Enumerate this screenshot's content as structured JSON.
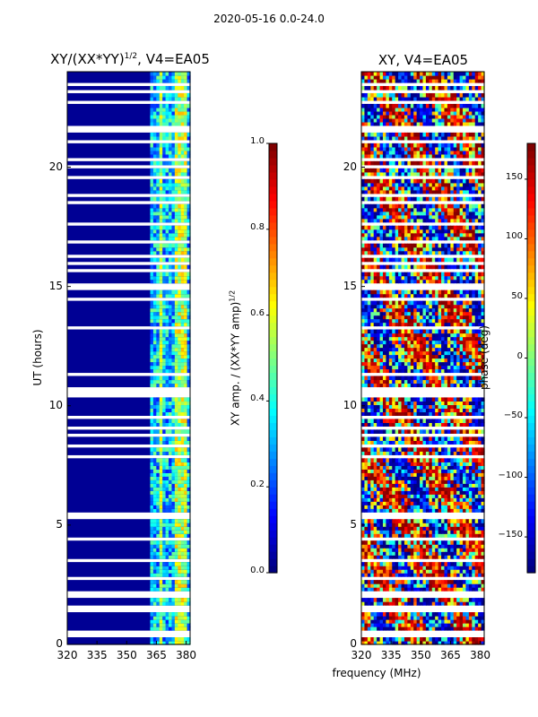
{
  "chart_data": [
    {
      "type": "heatmap",
      "panel_title_main": "XY/(XX*YY)",
      "panel_title_sup": "1/2",
      "panel_title_tail": ", V4=EA05",
      "xlabel": "",
      "ylabel": "UT (hours)",
      "xlim": [
        320,
        382
      ],
      "ylim": [
        0,
        24
      ],
      "xticks": [
        320,
        335,
        350,
        365,
        380
      ],
      "yticks": [
        0,
        5,
        10,
        15,
        20
      ],
      "colormap": "jet",
      "colorbar": {
        "label_main": "XY amp. / (XX*YY amp)",
        "label_sup": "1/2",
        "min": 0.0,
        "max": 1.0,
        "ticks": [
          "0.0",
          "0.2",
          "0.4",
          "0.6",
          "0.8",
          "1.0"
        ]
      }
    },
    {
      "type": "heatmap",
      "panel_title": "XY, V4=EA05",
      "xlabel": "frequency (MHz)",
      "ylabel": "",
      "xlim": [
        320,
        382
      ],
      "ylim": [
        0,
        24
      ],
      "xticks": [
        320,
        335,
        350,
        365,
        380
      ],
      "yticks": [
        0,
        5,
        10,
        15,
        20
      ],
      "colormap": "jet",
      "colorbar": {
        "label": "phase (deg)",
        "min": -180,
        "max": 180,
        "ticks": [
          "−150",
          "−100",
          "−50",
          "0",
          "50",
          "100",
          "150"
        ]
      }
    }
  ],
  "figure": {
    "suptitle": "2020-05-16 0.0-24.0"
  },
  "colors": {
    "low": "#00007f",
    "high": "#7f0000"
  }
}
